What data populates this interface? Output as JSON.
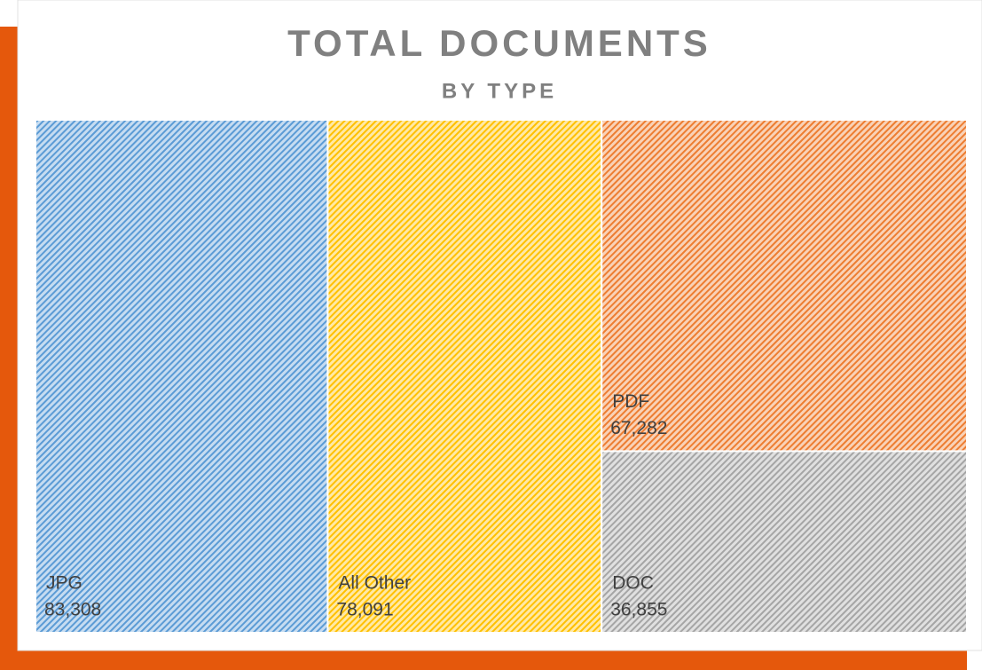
{
  "chart_data": {
    "type": "treemap",
    "title": "TOTAL DOCUMENTS",
    "subtitle": "BY TYPE",
    "categories": [
      "JPG",
      "All Other",
      "PDF",
      "DOC"
    ],
    "values": [
      83308,
      78091,
      67282,
      36855
    ],
    "value_labels": [
      "83,308",
      "78,091",
      "67,282",
      "36,855"
    ],
    "colors": [
      "#5b9bd5",
      "#ffc000",
      "#ed7d31",
      "#a5a5a5"
    ]
  }
}
